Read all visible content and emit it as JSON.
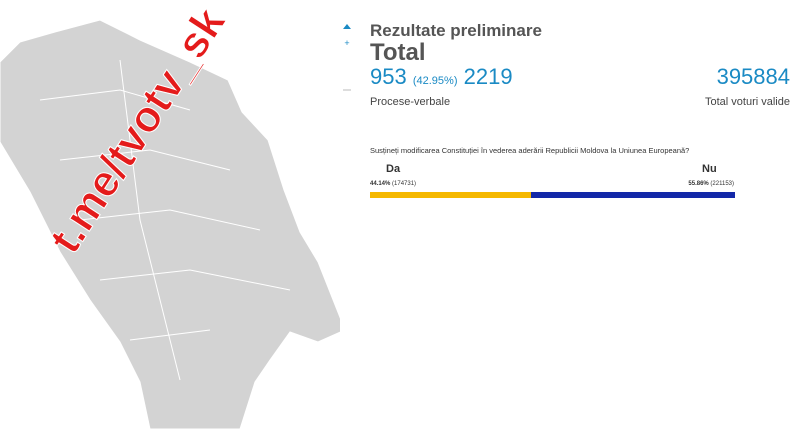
{
  "watermark": "t.me/tvotv_sk",
  "panel": {
    "title": "Rezultate preliminare",
    "subtitle": "Total",
    "reports_counted": "953",
    "reports_percent": "(42.95%)",
    "reports_total": "2219",
    "reports_label": "Procese-verbale",
    "valid_votes": "395884",
    "valid_votes_label": "Total voturi valide",
    "question": "Susțineți modificarea Constituției în vederea aderării Republicii Moldova la Uniunea Europeană?",
    "options": [
      {
        "label": "Da",
        "percent": 44.14,
        "percent_label": "44.14%",
        "votes_label": "(174731)",
        "color": "#f5b800"
      },
      {
        "label": "Nu",
        "percent": 55.86,
        "percent_label": "55.86%",
        "votes_label": "(221153)",
        "color": "#1328a8"
      }
    ]
  }
}
